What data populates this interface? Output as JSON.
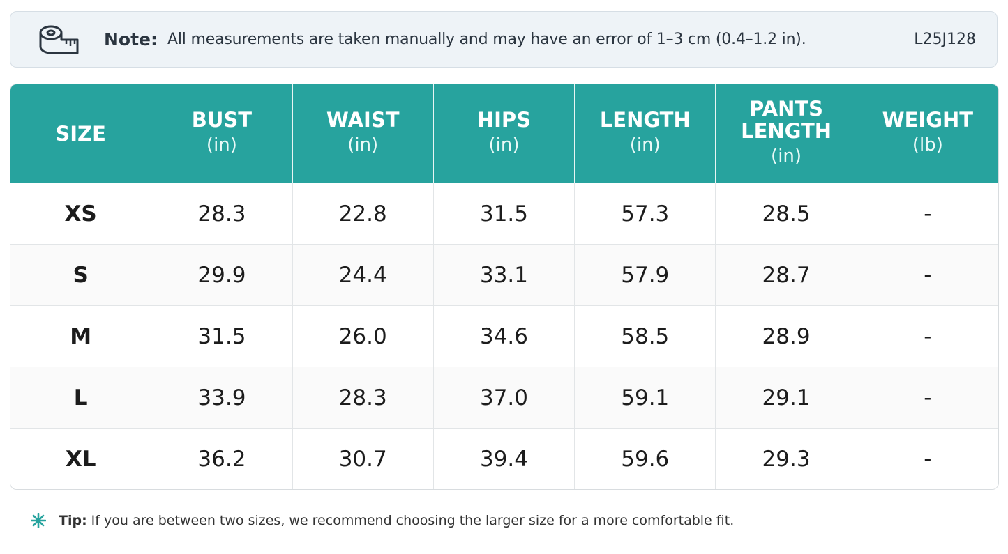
{
  "note": {
    "label": "Note:",
    "text": "All measurements are taken manually and may have an error of 1–3 cm (0.4–1.2 in).",
    "code": "L25J128"
  },
  "table": {
    "headers": [
      {
        "name": "SIZE"
      },
      {
        "name": "BUST",
        "unit": "(in)"
      },
      {
        "name": "WAIST",
        "unit": "(in)"
      },
      {
        "name": "HIPS",
        "unit": "(in)"
      },
      {
        "name": "LENGTH",
        "unit": "(in)"
      },
      {
        "name": "PANTS LENGTH",
        "unit": "(in)"
      },
      {
        "name": "WEIGHT",
        "unit": "(lb)"
      }
    ],
    "rows": [
      [
        "XS",
        "28.3",
        "22.8",
        "31.5",
        "57.3",
        "28.5",
        "-"
      ],
      [
        "S",
        "29.9",
        "24.4",
        "33.1",
        "57.9",
        "28.7",
        "-"
      ],
      [
        "M",
        "31.5",
        "26.0",
        "34.6",
        "58.5",
        "28.9",
        "-"
      ],
      [
        "L",
        "33.9",
        "28.3",
        "37.0",
        "59.1",
        "29.1",
        "-"
      ],
      [
        "XL",
        "36.2",
        "30.7",
        "39.4",
        "59.6",
        "29.3",
        "-"
      ]
    ]
  },
  "tip": {
    "label": "Tip:",
    "text": "If you are between two sizes,  we recommend choosing the larger size for a more comfortable fit."
  }
}
